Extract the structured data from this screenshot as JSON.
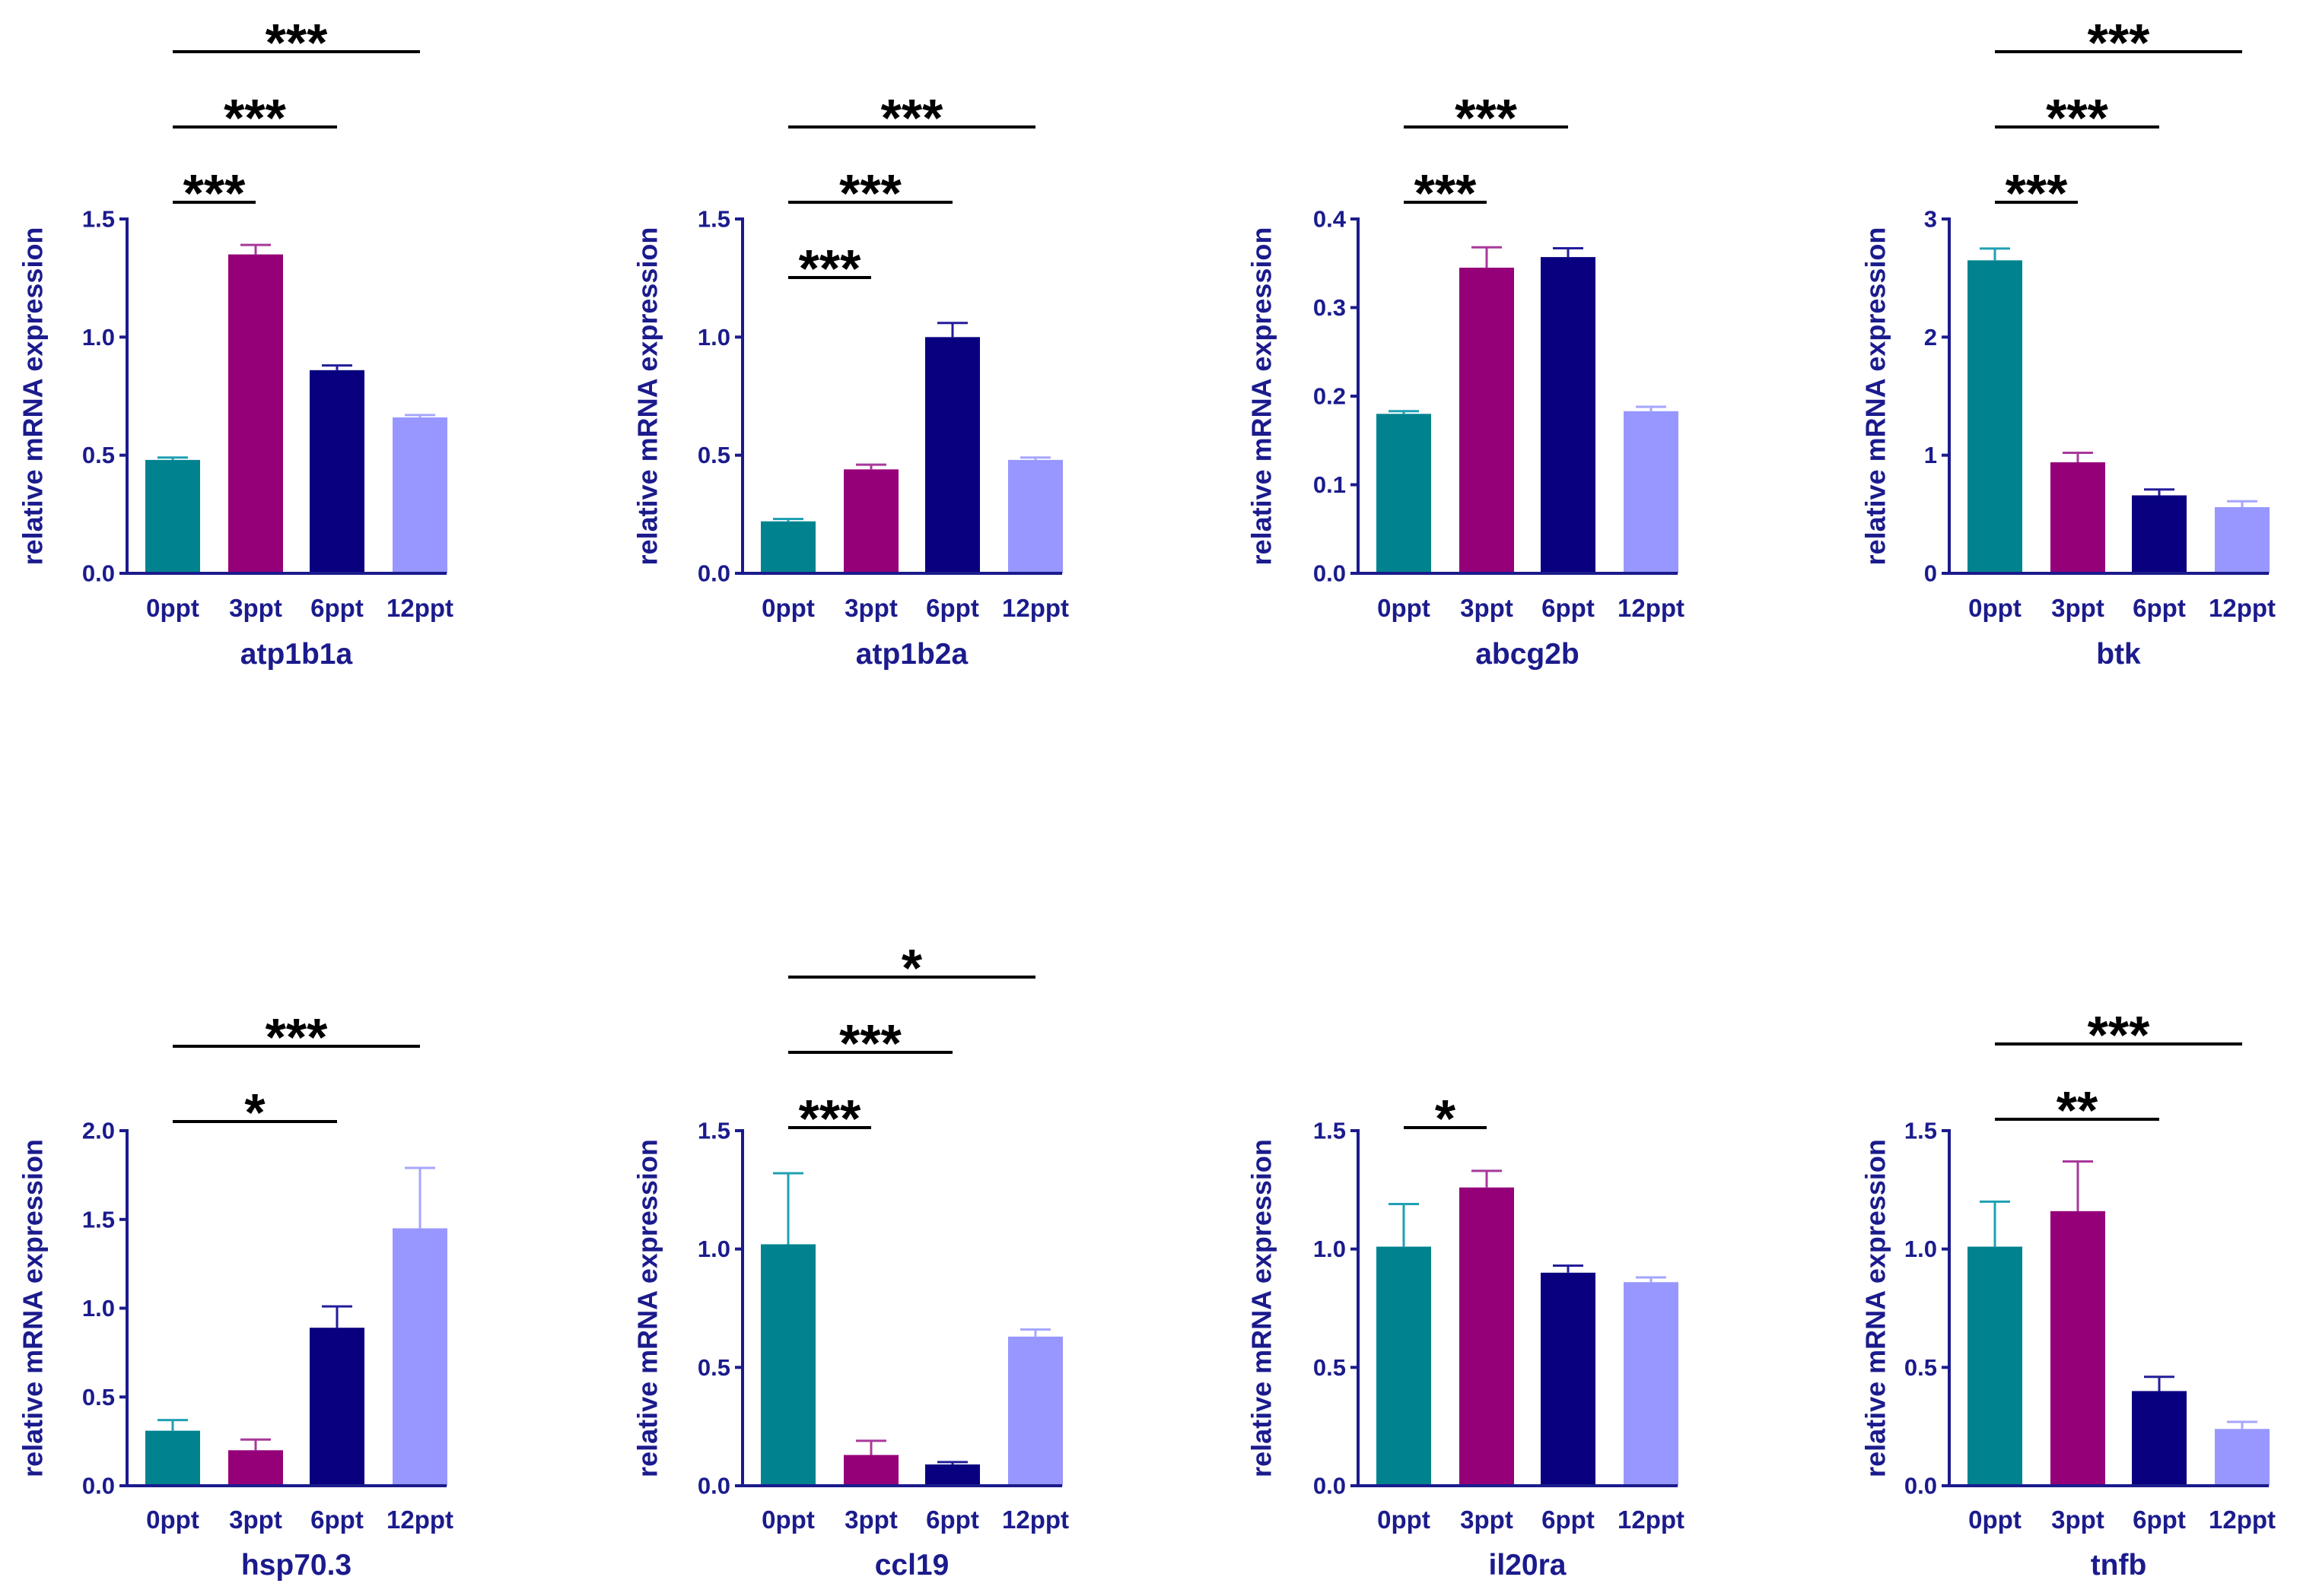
{
  "figure": {
    "style": {
      "bar_colors": [
        "#00838F",
        "#950079",
        "#09007F",
        "#9797FF"
      ],
      "error_colors": [
        "#1FA0B3",
        "#A9389A",
        "#231C9A",
        "#A6A6FF"
      ],
      "axis_color": "#1B1B8D",
      "significance_color": "#000000"
    }
  },
  "chart_data": [
    {
      "type": "bar",
      "xlabel": "atp1b1a",
      "ylabel": "relative mRNA expression",
      "categories": [
        "0ppt",
        "3ppt",
        "6ppt",
        "12ppt"
      ],
      "values": [
        0.48,
        1.35,
        0.86,
        0.66
      ],
      "errors": [
        0.01,
        0.04,
        0.02,
        0.01
      ],
      "ylim": [
        0,
        1.5
      ],
      "yticks": [
        "0.0",
        "0.5",
        "1.0",
        "1.5"
      ],
      "grid": false,
      "significance": [
        {
          "pair": [
            "0ppt",
            "3ppt"
          ],
          "label": "***"
        },
        {
          "pair": [
            "0ppt",
            "6ppt"
          ],
          "label": "***"
        },
        {
          "pair": [
            "0ppt",
            "12ppt"
          ],
          "label": "***"
        }
      ]
    },
    {
      "type": "bar",
      "xlabel": "atp1b2a",
      "ylabel": "relative mRNA expression",
      "categories": [
        "0ppt",
        "3ppt",
        "6ppt",
        "12ppt"
      ],
      "values": [
        0.22,
        0.44,
        1.0,
        0.48
      ],
      "errors": [
        0.01,
        0.02,
        0.06,
        0.01
      ],
      "ylim": [
        0,
        1.5
      ],
      "yticks": [
        "0.0",
        "0.5",
        "1.0",
        "1.5"
      ],
      "grid": false,
      "significance": [
        {
          "pair": [
            "0ppt",
            "3ppt"
          ],
          "label": "***"
        },
        {
          "pair": [
            "0ppt",
            "6ppt"
          ],
          "label": "***"
        },
        {
          "pair": [
            "0ppt",
            "12ppt"
          ],
          "label": "***"
        }
      ]
    },
    {
      "type": "bar",
      "xlabel": "abcg2b",
      "ylabel": "relative mRNA expression",
      "categories": [
        "0ppt",
        "3ppt",
        "6ppt",
        "12ppt"
      ],
      "values": [
        0.18,
        0.345,
        0.357,
        0.183
      ],
      "errors": [
        0.003,
        0.023,
        0.01,
        0.005
      ],
      "ylim": [
        0,
        0.4
      ],
      "yticks": [
        "0.0",
        "0.1",
        "0.2",
        "0.3",
        "0.4"
      ],
      "grid": false,
      "significance": [
        {
          "pair": [
            "0ppt",
            "3ppt"
          ],
          "label": "***"
        },
        {
          "pair": [
            "0ppt",
            "6ppt"
          ],
          "label": "***"
        }
      ]
    },
    {
      "type": "bar",
      "xlabel": "btk",
      "ylabel": "relative mRNA expression",
      "categories": [
        "0ppt",
        "3ppt",
        "6ppt",
        "12ppt"
      ],
      "values": [
        2.65,
        0.94,
        0.66,
        0.56
      ],
      "errors": [
        0.1,
        0.08,
        0.05,
        0.05
      ],
      "ylim": [
        0,
        3
      ],
      "yticks": [
        "0",
        "1",
        "2",
        "3"
      ],
      "grid": false,
      "significance": [
        {
          "pair": [
            "0ppt",
            "3ppt"
          ],
          "label": "***"
        },
        {
          "pair": [
            "0ppt",
            "6ppt"
          ],
          "label": "***"
        },
        {
          "pair": [
            "0ppt",
            "12ppt"
          ],
          "label": "***"
        }
      ]
    },
    {
      "type": "bar",
      "xlabel": "hsp70.3",
      "ylabel": "relative mRNA expression",
      "categories": [
        "0ppt",
        "3ppt",
        "6ppt",
        "12ppt"
      ],
      "values": [
        0.31,
        0.2,
        0.89,
        1.45
      ],
      "errors": [
        0.06,
        0.06,
        0.12,
        0.34
      ],
      "ylim": [
        0,
        2.0
      ],
      "yticks": [
        "0.0",
        "0.5",
        "1.0",
        "1.5",
        "2.0"
      ],
      "grid": false,
      "significance": [
        {
          "pair": [
            "0ppt",
            "6ppt"
          ],
          "label": "*"
        },
        {
          "pair": [
            "0ppt",
            "12ppt"
          ],
          "label": "***"
        }
      ]
    },
    {
      "type": "bar",
      "xlabel": "ccl19",
      "ylabel": "relative mRNA expression",
      "categories": [
        "0ppt",
        "3ppt",
        "6ppt",
        "12ppt"
      ],
      "values": [
        1.02,
        0.13,
        0.09,
        0.63
      ],
      "errors": [
        0.3,
        0.06,
        0.01,
        0.03
      ],
      "ylim": [
        0,
        1.5
      ],
      "yticks": [
        "0.0",
        "0.5",
        "1.0",
        "1.5"
      ],
      "grid": false,
      "significance": [
        {
          "pair": [
            "0ppt",
            "3ppt"
          ],
          "label": "***"
        },
        {
          "pair": [
            "0ppt",
            "6ppt"
          ],
          "label": "***"
        },
        {
          "pair": [
            "0ppt",
            "12ppt"
          ],
          "label": "*"
        }
      ]
    },
    {
      "type": "bar",
      "xlabel": "il20ra",
      "ylabel": "relative mRNA expression",
      "categories": [
        "0ppt",
        "3ppt",
        "6ppt",
        "12ppt"
      ],
      "values": [
        1.01,
        1.26,
        0.9,
        0.86
      ],
      "errors": [
        0.18,
        0.07,
        0.03,
        0.02
      ],
      "ylim": [
        0,
        1.5
      ],
      "yticks": [
        "0.0",
        "0.5",
        "1.0",
        "1.5"
      ],
      "grid": false,
      "significance": [
        {
          "pair": [
            "0ppt",
            "3ppt"
          ],
          "label": "*"
        }
      ]
    },
    {
      "type": "bar",
      "xlabel": "tnfb",
      "ylabel": "relative mRNA expression",
      "categories": [
        "0ppt",
        "3ppt",
        "6ppt",
        "12ppt"
      ],
      "values": [
        1.01,
        1.16,
        0.4,
        0.24
      ],
      "errors": [
        0.19,
        0.21,
        0.06,
        0.03
      ],
      "ylim": [
        0,
        1.5
      ],
      "yticks": [
        "0.0",
        "0.5",
        "1.0",
        "1.5"
      ],
      "grid": false,
      "significance": [
        {
          "pair": [
            "0ppt",
            "6ppt"
          ],
          "label": "**"
        },
        {
          "pair": [
            "0ppt",
            "12ppt"
          ],
          "label": "***"
        }
      ]
    }
  ]
}
